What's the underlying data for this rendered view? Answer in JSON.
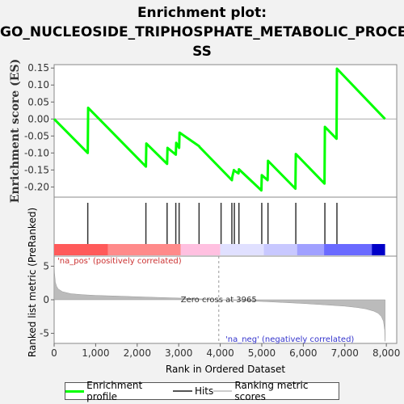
{
  "title_lines": [
    "Enrichment plot:",
    "GO_NUCLEOSIDE_TRIPHOSPHATE_METABOLIC_PROCE",
    "SS"
  ],
  "legend": [
    {
      "label": "Enrichment profile",
      "color": "#00ff00"
    },
    {
      "label": "Hits",
      "color": "#555555"
    },
    {
      "label": "Ranking metric scores",
      "color": "#cccccc"
    }
  ],
  "chart_data": [
    {
      "type": "line",
      "name": "enrichment-profile",
      "ylabel": "Enrichment score (ES)",
      "ylim": [
        -0.23,
        0.16
      ],
      "xlim": [
        0,
        8250
      ],
      "yticks": [
        "0.15",
        "0.10",
        "0.05",
        "0.00",
        "-0.05",
        "-0.10",
        "-0.15",
        "-0.20"
      ],
      "ytick_values": [
        0.15,
        0.1,
        0.05,
        0.0,
        -0.05,
        -0.1,
        -0.15,
        -0.2
      ],
      "color": "#00ff00",
      "x": [
        0,
        810,
        820,
        2210,
        2220,
        2720,
        2730,
        2930,
        2940,
        3010,
        3020,
        3490,
        3500,
        4280,
        4290,
        4330,
        4340,
        4440,
        4450,
        4990,
        5000,
        5140,
        5150,
        5810,
        5820,
        6510,
        6520,
        6800,
        6810,
        7970
      ],
      "y": [
        0.0,
        -0.1,
        0.033,
        -0.14,
        -0.072,
        -0.132,
        -0.085,
        -0.105,
        -0.07,
        -0.085,
        -0.04,
        -0.08,
        -0.082,
        -0.18,
        -0.17,
        -0.15,
        -0.152,
        -0.16,
        -0.148,
        -0.21,
        -0.165,
        -0.18,
        -0.123,
        -0.205,
        -0.103,
        -0.19,
        -0.023,
        -0.058,
        0.148,
        0.0
      ]
    },
    {
      "type": "hits",
      "name": "hits",
      "x": [
        810,
        2210,
        2720,
        2930,
        3010,
        3490,
        4020,
        4280,
        4340,
        4450,
        5000,
        5150,
        5820,
        6520,
        6810
      ]
    },
    {
      "type": "heatmap",
      "name": "rank-color-bar",
      "segments": [
        {
          "from": 0,
          "to": 1300,
          "color": "#ff5a5a"
        },
        {
          "from": 1300,
          "to": 3050,
          "color": "#ff8a8a"
        },
        {
          "from": 3050,
          "to": 4000,
          "color": "#ffc0e0"
        },
        {
          "from": 4000,
          "to": 5050,
          "color": "#e0e0ff"
        },
        {
          "from": 5050,
          "to": 5850,
          "color": "#c8c8ff"
        },
        {
          "from": 5850,
          "to": 6500,
          "color": "#a0a0ff"
        },
        {
          "from": 6500,
          "to": 7650,
          "color": "#6a6aff"
        },
        {
          "from": 7650,
          "to": 7970,
          "color": "#0000c8"
        }
      ],
      "pos_label": "'na_pos' (positively correlated)",
      "neg_label": "'na_neg' (negatively correlated)"
    },
    {
      "type": "area",
      "name": "ranked-list-metric",
      "xlabel": "Rank in Ordered Dataset",
      "ylabel": "Ranked list metric (PreRanked)",
      "xlim": [
        0,
        8250
      ],
      "ylim": [
        -6.5,
        6.5
      ],
      "yticks": [
        "5",
        "0",
        "-5"
      ],
      "ytick_values": [
        5,
        0,
        -5
      ],
      "xticks": [
        "0",
        "1,000",
        "2,000",
        "3,000",
        "4,000",
        "5,000",
        "6,000",
        "7,000",
        "8,000"
      ],
      "xtick_values": [
        0,
        1000,
        2000,
        3000,
        4000,
        5000,
        6000,
        7000,
        8000
      ],
      "x": [
        0,
        10,
        30,
        60,
        100,
        200,
        400,
        700,
        1000,
        1500,
        2000,
        2500,
        3000,
        3500,
        3965,
        4500,
        5000,
        5500,
        6000,
        6500,
        7000,
        7300,
        7500,
        7700,
        7800,
        7880,
        7930,
        7960,
        7970
      ],
      "y": [
        5.5,
        4.0,
        2.6,
        2.0,
        1.6,
        1.2,
        0.9,
        0.75,
        0.65,
        0.55,
        0.45,
        0.35,
        0.25,
        0.15,
        0.0,
        -0.15,
        -0.25,
        -0.4,
        -0.55,
        -0.75,
        -0.95,
        -1.15,
        -1.35,
        -1.7,
        -2.0,
        -2.5,
        -3.2,
        -4.5,
        -6.2
      ],
      "color": "#bbbbbb",
      "zero_cross_label": "Zero cross at 3965",
      "zero_cross": 3965
    }
  ]
}
